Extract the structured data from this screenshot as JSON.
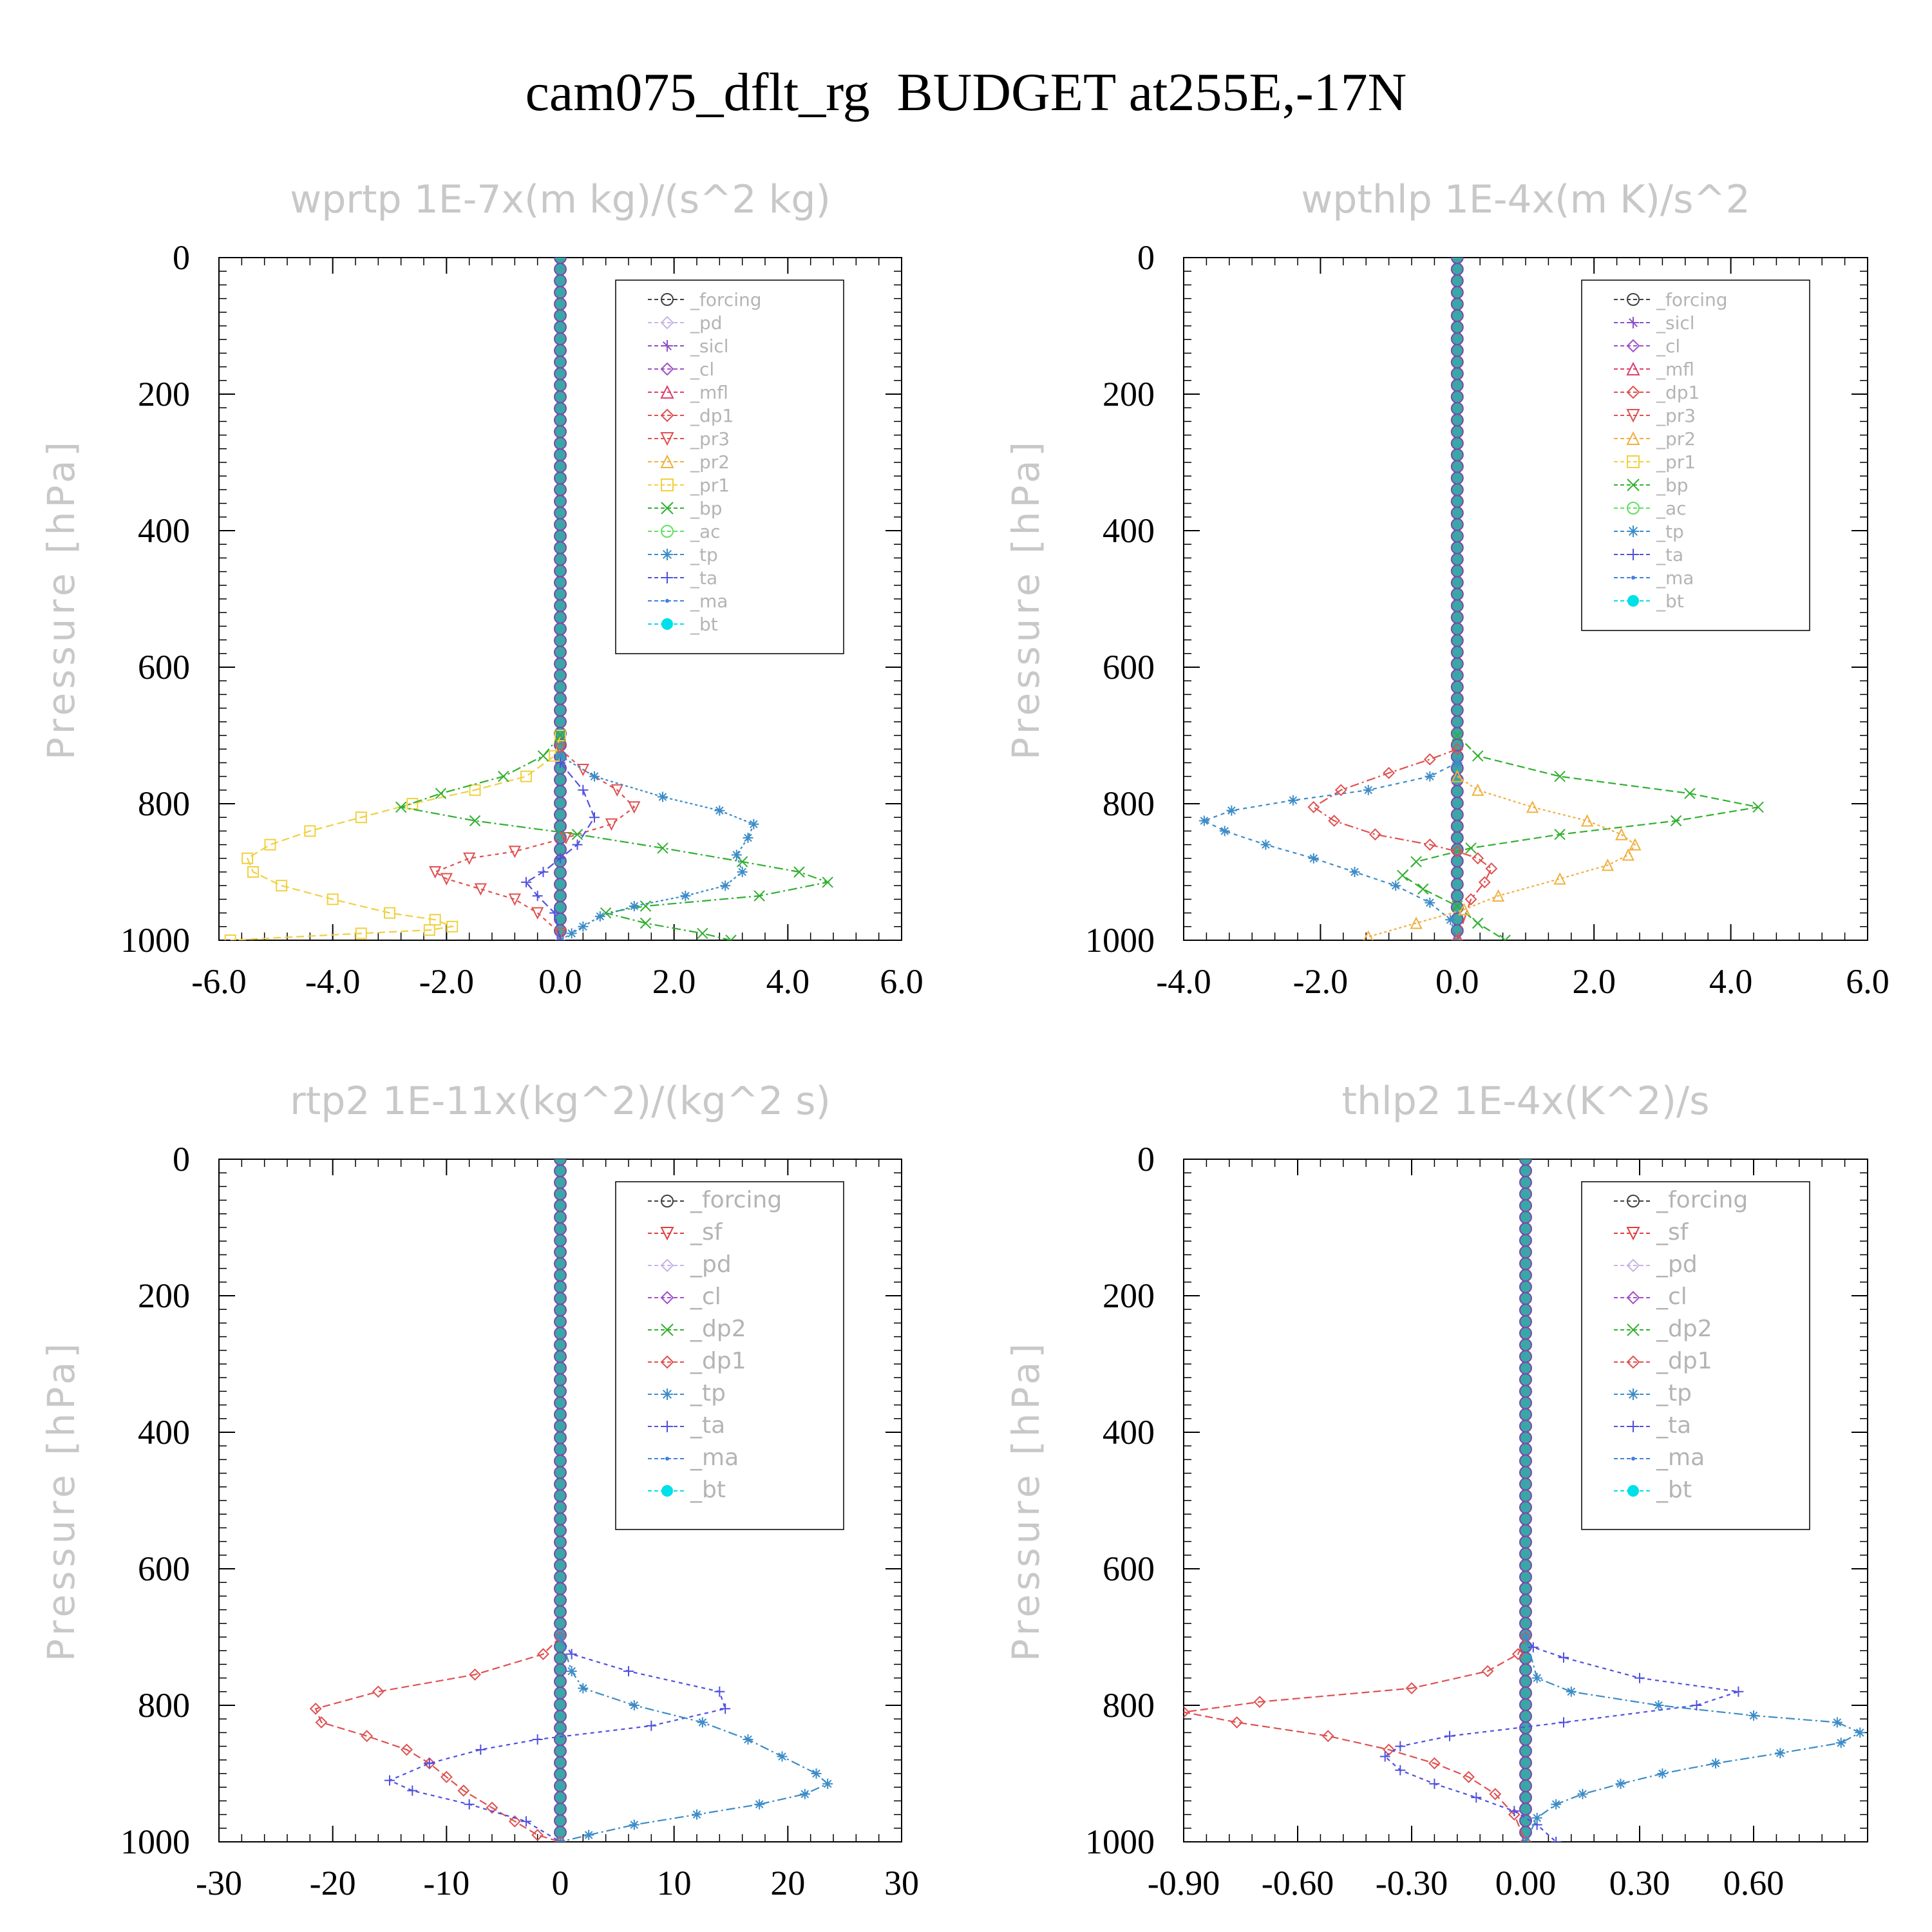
{
  "title": "cam075_dflt_rg  BUDGET at255E,-17N",
  "colors": {
    "_forcing": "#404040",
    "_pd": "#c8b4e6",
    "_sicl": "#8c50c8",
    "_cl": "#a050c8",
    "_mfl": "#e0406e",
    "_dp1": "#e05050",
    "_pr3": "#e05050",
    "_pr2": "#f0b040",
    "_pr1": "#f0d040",
    "_bp": "#30b030",
    "_ac": "#60e060",
    "_tp": "#3c8cc8",
    "_ta": "#5050e0",
    "_ma": "#4080e0",
    "_bt": "#00e0e8",
    "_sf": "#e04040",
    "_dp2": "#30b030"
  },
  "chart_data": [
    {
      "type": "line",
      "title": "wprtp  1E-7x(m kg)/(s^2 kg)",
      "ylabel": "Pressure [hPa]",
      "xlim": [
        -6,
        6
      ],
      "ylim": [
        0,
        1000
      ],
      "y_inverted": true,
      "xticks": [
        "-6.0",
        "-4.0",
        "-2.0",
        "0.0",
        "2.0",
        "4.0",
        "6.0"
      ],
      "xtick_values": [
        -6,
        -4,
        -2,
        0,
        2,
        4,
        6
      ],
      "yticks": [
        "0",
        "200",
        "400",
        "600",
        "800",
        "1000"
      ],
      "ytick_values": [
        0,
        200,
        400,
        600,
        800,
        1000
      ],
      "legend": [
        "_forcing",
        "_pd",
        "_sicl",
        "_cl",
        "_mfl",
        "_dp1",
        "_pr3",
        "_pr2",
        "_pr1",
        "_bp",
        "_ac",
        "_tp",
        "_ta",
        "_ma",
        "_bt"
      ],
      "series": [
        {
          "name": "_pr1",
          "x": [
            0,
            -0.1,
            -0.6,
            -1.5,
            -2.6,
            -3.5,
            -4.4,
            -5.1,
            -5.5,
            -5.4,
            -4.9,
            -4.0,
            -3.0,
            -2.2,
            -1.9,
            -2.3,
            -3.5,
            -5.8
          ],
          "y": [
            700,
            730,
            760,
            780,
            800,
            820,
            840,
            860,
            880,
            900,
            920,
            940,
            960,
            970,
            980,
            985,
            990,
            1000
          ]
        },
        {
          "name": "_pr3",
          "x": [
            0,
            0.4,
            1.0,
            1.3,
            0.9,
            0.1,
            -0.8,
            -1.6,
            -2.2,
            -2.0,
            -1.4,
            -0.8,
            -0.4,
            0
          ],
          "y": [
            720,
            750,
            780,
            805,
            830,
            850,
            870,
            880,
            900,
            910,
            925,
            940,
            960,
            990
          ]
        },
        {
          "name": "_bp",
          "x": [
            0,
            -0.3,
            -1.0,
            -2.1,
            -2.8,
            -1.5,
            0.3,
            1.8,
            3.2,
            4.2,
            4.7,
            3.5,
            1.5,
            0.8,
            1.5,
            2.5,
            3.0
          ],
          "y": [
            700,
            730,
            760,
            785,
            805,
            825,
            845,
            865,
            885,
            900,
            915,
            935,
            950,
            960,
            975,
            990,
            1000
          ]
        },
        {
          "name": "_tp",
          "x": [
            0,
            0.6,
            1.8,
            2.8,
            3.4,
            3.3,
            3.1,
            3.2,
            2.9,
            2.2,
            1.3,
            0.7,
            0.4,
            0.2,
            0
          ],
          "y": [
            730,
            760,
            790,
            810,
            830,
            850,
            875,
            900,
            920,
            935,
            950,
            965,
            980,
            990,
            1000
          ]
        },
        {
          "name": "_ta",
          "x": [
            0,
            0.4,
            0.6,
            0.3,
            0,
            -0.3,
            -0.6,
            -0.4,
            -0.1,
            0
          ],
          "y": [
            740,
            780,
            820,
            860,
            880,
            900,
            915,
            935,
            960,
            1000
          ]
        },
        {
          "name": "_forcing",
          "x": [
            0,
            0
          ],
          "y": [
            0,
            1000
          ]
        },
        {
          "name": "_bt",
          "x": [
            0,
            0
          ],
          "y": [
            0,
            1000
          ]
        }
      ]
    },
    {
      "type": "line",
      "title": "wpthlp  1E-4x(m K)/s^2",
      "ylabel": "Pressure [hPa]",
      "xlim": [
        -4,
        6
      ],
      "ylim": [
        0,
        1000
      ],
      "y_inverted": true,
      "xticks": [
        "-4.0",
        "-2.0",
        "0.0",
        "2.0",
        "4.0",
        "6.0"
      ],
      "xtick_values": [
        -4,
        -2,
        0,
        2,
        4,
        6
      ],
      "yticks": [
        "0",
        "200",
        "400",
        "600",
        "800",
        "1000"
      ],
      "ytick_values": [
        0,
        200,
        400,
        600,
        800,
        1000
      ],
      "legend": [
        "_forcing",
        "_sicl",
        "_cl",
        "_mfl",
        "_dp1",
        "_pr3",
        "_pr2",
        "_pr1",
        "_bp",
        "_ac",
        "_tp",
        "_ta",
        "_ma",
        "_bt"
      ],
      "series": [
        {
          "name": "_bp",
          "x": [
            0,
            0.3,
            1.5,
            3.4,
            4.4,
            3.2,
            1.5,
            0.2,
            -0.6,
            -0.8,
            -0.5,
            0,
            0.3,
            0.7
          ],
          "y": [
            700,
            730,
            760,
            785,
            805,
            825,
            845,
            865,
            885,
            905,
            925,
            950,
            975,
            1000
          ]
        },
        {
          "name": "_tp",
          "x": [
            0,
            -0.4,
            -1.3,
            -2.4,
            -3.3,
            -3.7,
            -3.4,
            -2.8,
            -2.1,
            -1.5,
            -0.9,
            -0.4,
            -0.1,
            0
          ],
          "y": [
            740,
            760,
            780,
            795,
            810,
            825,
            840,
            860,
            880,
            900,
            920,
            945,
            970,
            1000
          ]
        },
        {
          "name": "_dp1",
          "x": [
            0,
            -0.4,
            -1.0,
            -1.7,
            -2.1,
            -1.8,
            -1.2,
            -0.4,
            0,
            0.3,
            0.5,
            0.4,
            0.2,
            0
          ],
          "y": [
            720,
            735,
            755,
            780,
            805,
            825,
            845,
            860,
            870,
            880,
            895,
            915,
            940,
            1000
          ]
        },
        {
          "name": "_pr2",
          "x": [
            0,
            0.3,
            1.1,
            1.9,
            2.4,
            2.6,
            2.5,
            2.2,
            1.5,
            0.6,
            0.1,
            -0.6,
            -1.3
          ],
          "y": [
            760,
            780,
            805,
            825,
            845,
            860,
            875,
            890,
            910,
            935,
            955,
            975,
            995
          ]
        },
        {
          "name": "_pr1",
          "x": [
            0,
            0
          ],
          "y": [
            0,
            1000
          ]
        },
        {
          "name": "_bt",
          "x": [
            0,
            0
          ],
          "y": [
            0,
            1000
          ]
        }
      ]
    },
    {
      "type": "line",
      "title": "rtp2  1E-11x(kg^2)/(kg^2 s)",
      "ylabel": "Pressure [hPa]",
      "xlim": [
        -30,
        30
      ],
      "ylim": [
        0,
        1000
      ],
      "y_inverted": true,
      "xticks": [
        "-30",
        "-20",
        "-10",
        "0",
        "10",
        "20",
        "30"
      ],
      "xtick_values": [
        -30,
        -20,
        -10,
        0,
        10,
        20,
        30
      ],
      "yticks": [
        "0",
        "200",
        "400",
        "600",
        "800",
        "1000"
      ],
      "ytick_values": [
        0,
        200,
        400,
        600,
        800,
        1000
      ],
      "legend": [
        "_forcing",
        "_sf",
        "_pd",
        "_cl",
        "_dp2",
        "_dp1",
        "_tp",
        "_ta",
        "_ma",
        "_bt"
      ],
      "series": [
        {
          "name": "_dp1",
          "x": [
            0,
            -1.5,
            -7.5,
            -16,
            -21.5,
            -21,
            -17,
            -13.5,
            -11.5,
            -10,
            -8.5,
            -6,
            -4,
            -2,
            0
          ],
          "y": [
            700,
            725,
            755,
            780,
            805,
            825,
            845,
            865,
            885,
            905,
            925,
            950,
            970,
            990,
            1000
          ]
        },
        {
          "name": "_ta",
          "x": [
            0,
            1,
            6,
            14,
            14.5,
            8,
            -2,
            -7,
            -11.5,
            -15,
            -13,
            -8,
            -3,
            0
          ],
          "y": [
            700,
            725,
            750,
            780,
            805,
            830,
            850,
            865,
            885,
            910,
            925,
            945,
            970,
            1000
          ]
        },
        {
          "name": "_tp",
          "x": [
            0,
            1,
            2,
            6.5,
            12.5,
            16.5,
            19.5,
            22.5,
            23.5,
            21.5,
            17.5,
            12,
            6.5,
            2.5,
            0
          ],
          "y": [
            700,
            750,
            775,
            800,
            825,
            850,
            875,
            900,
            915,
            930,
            945,
            960,
            975,
            990,
            1000
          ]
        },
        {
          "name": "_forcing",
          "x": [
            0,
            0
          ],
          "y": [
            0,
            1000
          ]
        },
        {
          "name": "_bt",
          "x": [
            0,
            0
          ],
          "y": [
            0,
            1000
          ]
        }
      ]
    },
    {
      "type": "line",
      "title": "thlp2  1E-4x(K^2)/s",
      "ylabel": "Pressure [hPa]",
      "xlim": [
        -0.9,
        0.9
      ],
      "ylim": [
        0,
        1000
      ],
      "y_inverted": true,
      "xticks": [
        "-0.90",
        "-0.60",
        "-0.30",
        "0.00",
        "0.30",
        "0.60"
      ],
      "xtick_values": [
        -0.9,
        -0.6,
        -0.3,
        0,
        0.3,
        0.6
      ],
      "yticks": [
        "0",
        "200",
        "400",
        "600",
        "800",
        "1000"
      ],
      "ytick_values": [
        0,
        200,
        400,
        600,
        800,
        1000
      ],
      "legend": [
        "_forcing",
        "_sf",
        "_pd",
        "_cl",
        "_dp2",
        "_dp1",
        "_tp",
        "_ta",
        "_ma",
        "_bt"
      ],
      "series": [
        {
          "name": "_dp1",
          "x": [
            0,
            -0.02,
            -0.1,
            -0.3,
            -0.7,
            -0.9,
            -0.76,
            -0.52,
            -0.36,
            -0.24,
            -0.15,
            -0.08,
            -0.03,
            0
          ],
          "y": [
            700,
            725,
            750,
            775,
            795,
            810,
            825,
            845,
            865,
            885,
            905,
            930,
            960,
            1000
          ]
        },
        {
          "name": "_ta",
          "x": [
            0,
            0.02,
            0.1,
            0.3,
            0.56,
            0.45,
            0.1,
            -0.2,
            -0.33,
            -0.37,
            -0.33,
            -0.24,
            -0.13,
            -0.03,
            0.03,
            0.08
          ],
          "y": [
            700,
            715,
            730,
            760,
            780,
            800,
            825,
            845,
            860,
            875,
            895,
            915,
            935,
            955,
            975,
            1000
          ]
        },
        {
          "name": "_tp",
          "x": [
            0,
            0.03,
            0.12,
            0.35,
            0.6,
            0.82,
            0.88,
            0.83,
            0.67,
            0.5,
            0.36,
            0.25,
            0.15,
            0.08,
            0.03,
            0
          ],
          "y": [
            700,
            760,
            780,
            800,
            815,
            825,
            840,
            855,
            870,
            885,
            900,
            915,
            930,
            945,
            965,
            1000
          ]
        },
        {
          "name": "_forcing",
          "x": [
            0,
            0
          ],
          "y": [
            0,
            1000
          ]
        },
        {
          "name": "_bt",
          "x": [
            0,
            0
          ],
          "y": [
            0,
            1000
          ]
        }
      ]
    }
  ]
}
